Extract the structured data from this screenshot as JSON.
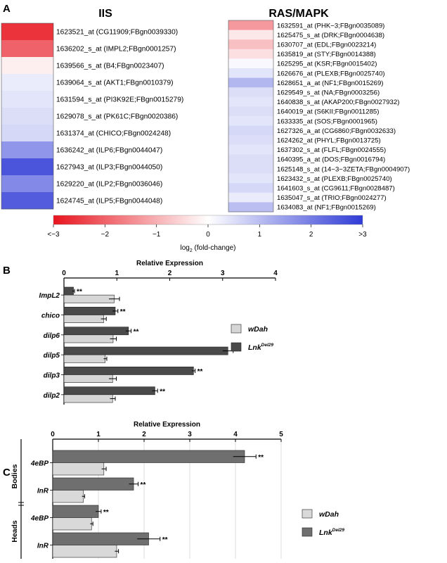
{
  "panels": {
    "a": "A",
    "b": "B",
    "c": "C"
  },
  "heatmap": {
    "iis_title": "IIS",
    "ras_title": "RAS/MAPK",
    "iis_rows": [
      {
        "label": "1623521_at (CG11909;FBgn0039330)",
        "value": -2.6
      },
      {
        "label": "1636202_s_at (IMPL2;FBgn0001257)",
        "value": -2.0
      },
      {
        "label": "1639566_s_at (B4;FBgn0023407)",
        "value": -0.2
      },
      {
        "label": "1639064_s_at (AKT1;FBgn0010379)",
        "value": 0.3
      },
      {
        "label": "1631594_s_at (PI3K92E;FBgn0015279)",
        "value": 0.4
      },
      {
        "label": "1629078_s_at (PK61C;FBgn0020386)",
        "value": 0.5
      },
      {
        "label": "1631374_at (CHICO;FBgn0024248)",
        "value": 0.6
      },
      {
        "label": "1636242_at (ILP6;FBgn0044047)",
        "value": 1.6
      },
      {
        "label": "1627943_at (ILP3;FBgn0044050)",
        "value": 2.6
      },
      {
        "label": "1629220_at (ILP2;FBgn0036046)",
        "value": 1.8
      },
      {
        "label": "1624745_at (ILP5;FBgn0044048)",
        "value": 2.5
      }
    ],
    "ras_rows": [
      {
        "label": "1632591_at (PHK−3;FBgn0035089)",
        "value": -1.3
      },
      {
        "label": "1625475_s_at (DRK;FBgn0004638)",
        "value": -0.3
      },
      {
        "label": "1630707_at (EDL;FBgn0023214)",
        "value": -0.8
      },
      {
        "label": "1635819_at (STY;FBgn0014388)",
        "value": -0.4
      },
      {
        "label": "1625295_at (KSR;FBgn0015402)",
        "value": 0.1
      },
      {
        "label": "1626676_at (PLEXB;FBgn0025740)",
        "value": 0.4
      },
      {
        "label": "1628651_a_at (NF1;FBgn0015269)",
        "value": 1.1
      },
      {
        "label": "1629549_s_at (NA;FBgn0003256)",
        "value": 0.5
      },
      {
        "label": "1640838_s_at (AKAP200;FBgn0027932)",
        "value": 0.4
      },
      {
        "label": "1640019_at (S6KII;FBgn0011285)",
        "value": 0.5
      },
      {
        "label": "1633335_at (SOS;FBgn0001965)",
        "value": 0.4
      },
      {
        "label": "1627326_a_at (CG6860;FBgn0032633)",
        "value": 0.6
      },
      {
        "label": "1624262_at (PHYL;FBgn0013725)",
        "value": 0.5
      },
      {
        "label": "1637302_s_at (FLFL;FBgn0024555)",
        "value": 0.4
      },
      {
        "label": "1640395_a_at (DOS;FBgn0016794)",
        "value": 0.5
      },
      {
        "label": "1625148_s_at (14−3−3ZETA;FBgn0004907)",
        "value": 0.5
      },
      {
        "label": "1623432_s_at (PLEXB;FBgn0025740)",
        "value": 0.4
      },
      {
        "label": "1641603_s_at (CG9611;FBgn0028487)",
        "value": 0.6
      },
      {
        "label": "1635047_s_at (TRIO;FBgn0024277)",
        "value": 0.3
      },
      {
        "label": "1634083_at (NF1;FBgn0015269)",
        "value": 1.0
      }
    ],
    "scale_ticks": [
      "<−3",
      "−2",
      "−1",
      "0",
      "1",
      "2",
      ">3"
    ],
    "scale_label": "log",
    "scale_label_sub": "2",
    "scale_label_tail": " (fold-change)",
    "colors": {
      "neg": "#e8141e",
      "mid": "#ffffff",
      "pos": "#2f3bd6"
    }
  },
  "chart_data": [
    {
      "type": "bar",
      "panel": "B",
      "xlabel": "Relative Expression",
      "xlim": [
        0,
        4
      ],
      "xticks": [
        "0",
        "1",
        "2",
        "3",
        "4"
      ],
      "categories": [
        "ImpL2",
        "chico",
        "dilp6",
        "dilp5",
        "dilp3",
        "dilp2"
      ],
      "series": [
        {
          "name": "Lnk",
          "sup": "Del29",
          "color": "#4a4a4a",
          "values": [
            0.18,
            0.97,
            1.22,
            3.1,
            2.45,
            1.72
          ],
          "errors": [
            0.02,
            0.05,
            0.05,
            0.1,
            0.03,
            0.05
          ],
          "sig": [
            "**",
            "**",
            "**",
            "**",
            "**",
            "**"
          ]
        },
        {
          "name": "wDah",
          "sup": "",
          "color": "#d6d6d6",
          "values": [
            0.95,
            0.75,
            0.93,
            0.78,
            0.92,
            0.92
          ],
          "errors": [
            0.1,
            0.05,
            0.06,
            0.03,
            0.07,
            0.05
          ]
        }
      ]
    },
    {
      "type": "bar",
      "panel": "C",
      "xlabel": "Relative Expression",
      "xlim": [
        0,
        5
      ],
      "xticks": [
        "0",
        "1",
        "2",
        "3",
        "4",
        "5"
      ],
      "groups": [
        "Bodies",
        "Heads"
      ],
      "categories": [
        "4eBP",
        "InR",
        "4eBP",
        "InR"
      ],
      "series": [
        {
          "name": "Lnk",
          "sup": "Del29",
          "color": "#6f6f6f",
          "values": [
            4.2,
            1.77,
            1.0,
            2.1
          ],
          "errors": [
            0.25,
            0.1,
            0.06,
            0.25
          ],
          "sig": [
            "**",
            "**",
            "**",
            "**"
          ]
        },
        {
          "name": "wDah",
          "sup": "",
          "color": "#d9d9d9",
          "values": [
            1.12,
            0.67,
            0.85,
            1.4
          ],
          "errors": [
            0.05,
            0.03,
            0.03,
            0.04
          ]
        }
      ]
    }
  ]
}
